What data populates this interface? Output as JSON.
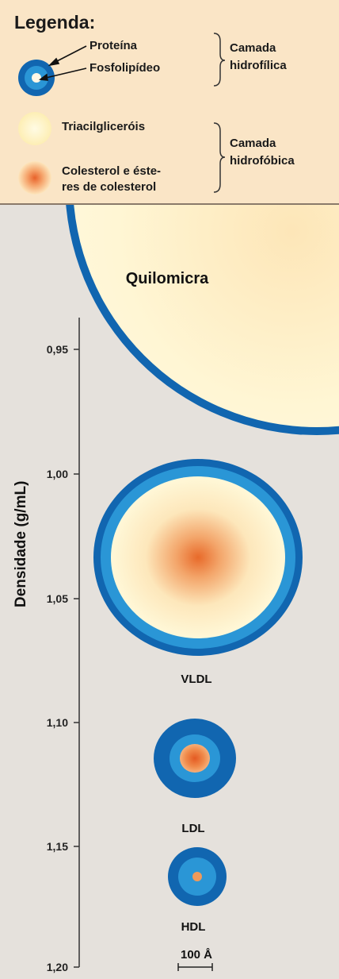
{
  "legend": {
    "title": "Legenda:",
    "protein_label": "Proteína",
    "phospholipid_label": "Fosfolipídeo",
    "hydrophilic_label_1": "Camada",
    "hydrophilic_label_2": "hidrofílica",
    "triacyl_label": "Triacilgliceróis",
    "cholesterol_label_1": "Colesterol e éste-",
    "cholesterol_label_2": "res de colesterol",
    "hydrophobic_label_1": "Camada",
    "hydrophobic_label_2": "hidrofóbica"
  },
  "axis": {
    "label": "Densidade (g/mL)",
    "ticks": [
      "0,95",
      "1,00",
      "1,05",
      "1,10",
      "1,15",
      "1,20"
    ]
  },
  "particles": {
    "chylomicron": "Quilomicra",
    "vldl": "VLDL",
    "ldl": "LDL",
    "hdl": "HDL"
  },
  "scale_bar": "100 Å",
  "colors": {
    "blue_dark": "#1166b0",
    "blue_light": "#2a96d6",
    "cream": "#fff8d4",
    "orange_core": "#ec6a2c",
    "legend_bg": "#fae5c6",
    "background": "#e5e1dc"
  }
}
